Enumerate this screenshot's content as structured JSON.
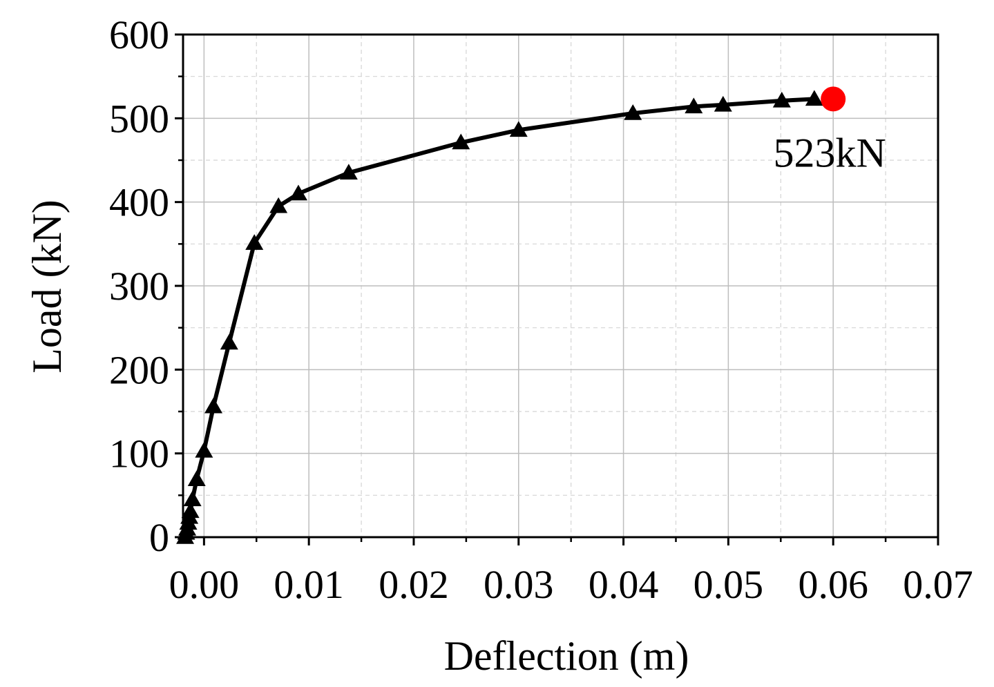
{
  "chart_data": {
    "type": "line",
    "title": "",
    "xlabel": "Deflection (m)",
    "ylabel": "Load (kN)",
    "xlim": [
      -0.002,
      0.07
    ],
    "ylim": [
      0,
      600
    ],
    "x_ticks": [
      "0.00",
      "0.01",
      "0.02",
      "0.03",
      "0.04",
      "0.05",
      "0.06",
      "0.07"
    ],
    "x_tick_values": [
      0,
      0.01,
      0.02,
      0.03,
      0.04,
      0.05,
      0.06,
      0.07
    ],
    "y_ticks": [
      "0",
      "100",
      "200",
      "300",
      "400",
      "500",
      "600"
    ],
    "y_tick_values": [
      0,
      100,
      200,
      300,
      400,
      500,
      600
    ],
    "grid": true,
    "series": [
      {
        "marker": "triangle",
        "color": "#000000",
        "points": [
          [
            -0.0018,
            0
          ],
          [
            -0.0017,
            5
          ],
          [
            -0.0016,
            10
          ],
          [
            -0.0015,
            17
          ],
          [
            -0.0014,
            24
          ],
          [
            -0.0013,
            31
          ],
          [
            -0.0011,
            45
          ],
          [
            -0.0007,
            69
          ],
          [
            0.0,
            103
          ],
          [
            0.0009,
            156
          ],
          [
            0.0024,
            232
          ],
          [
            0.0048,
            351
          ],
          [
            0.0071,
            395
          ],
          [
            0.009,
            410
          ],
          [
            0.0138,
            435
          ],
          [
            0.0245,
            471
          ],
          [
            0.03,
            486
          ],
          [
            0.0409,
            506
          ],
          [
            0.0467,
            514
          ],
          [
            0.0495,
            516
          ],
          [
            0.0551,
            521
          ],
          [
            0.0582,
            523
          ]
        ]
      }
    ],
    "peak": {
      "x": 0.06,
      "y": 523,
      "color": "#ff0000",
      "label": "523kN"
    }
  }
}
